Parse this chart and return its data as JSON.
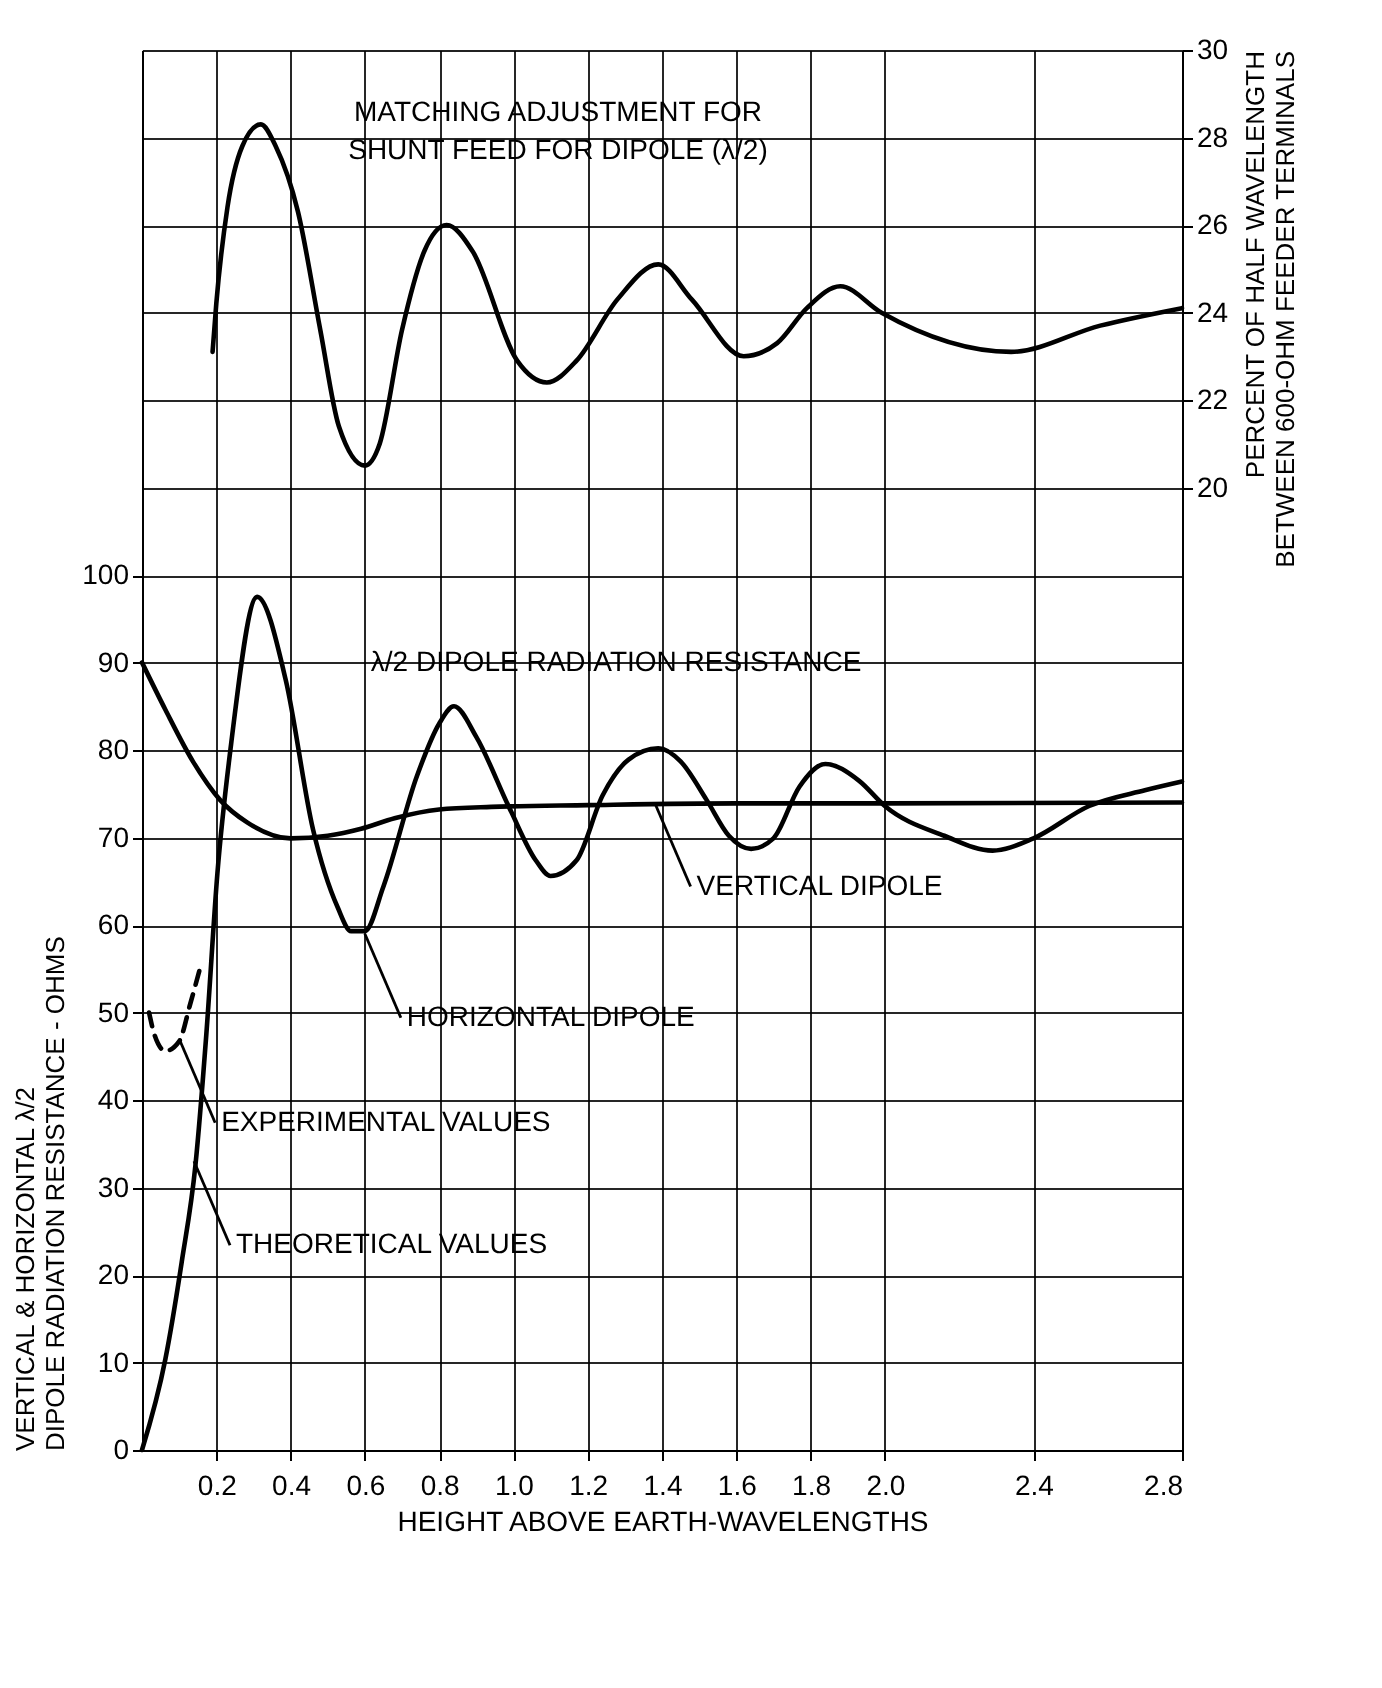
{
  "chart_data": {
    "type": "line",
    "xlabel": "HEIGHT ABOVE EARTH-WAVELENGTHS",
    "ylabel": "VERTICAL & HORIZONTAL λ/2\nDIPOLE RADIATION RESISTANCE - OHMS",
    "y2label": "PERCENT OF HALF WAVELENGTH\nBETWEEN 600-OHM FEEDER TERMINALS",
    "xlim": [
      0,
      2.8
    ],
    "xticks": [
      0.2,
      0.4,
      0.6,
      0.8,
      {
        "value": 1.0,
        "label": "1.0"
      },
      1.2,
      1.4,
      1.6,
      1.8,
      {
        "value": 2.0,
        "label": "2.0"
      },
      2.4,
      2.8
    ],
    "ylim": [
      0,
      160
    ],
    "yticks": [
      0,
      10,
      20,
      30,
      40,
      50,
      60,
      70,
      80,
      90,
      100
    ],
    "y2lim": [
      -2,
      30
    ],
    "y2ticks": [
      20,
      22,
      24,
      26,
      28,
      30
    ],
    "grid": true,
    "series": [
      {
        "color": "#000000",
        "axis": "y2",
        "x": [
          0.19,
          0.2,
          0.23,
          0.27,
          0.32,
          0.36,
          0.42,
          0.48,
          0.53,
          0.6,
          0.64,
          0.7,
          0.76,
          0.82,
          0.89,
          1.01,
          1.09,
          1.17,
          1.28,
          1.39,
          1.48,
          1.62,
          1.71,
          1.79,
          1.88,
          1.99,
          2.34,
          2.58,
          2.8
        ],
        "values": [
          23.1,
          24.2,
          26.4,
          27.8,
          28.3,
          27.8,
          26.3,
          23.6,
          21.4,
          20.5,
          21.0,
          23.6,
          25.4,
          26.0,
          25.4,
          22.9,
          22.4,
          22.9,
          24.3,
          25.1,
          24.3,
          23.0,
          23.3,
          24.1,
          24.6,
          24.0,
          23.1,
          23.7,
          24.1
        ]
      },
      {
        "color": "#000000",
        "x": [
          0,
          0.063,
          0.107,
          0.144,
          0.173,
          0.203,
          0.24,
          0.31,
          0.387,
          0.46,
          0.527,
          0.563,
          0.6,
          0.65,
          0.74,
          0.8,
          0.84,
          0.9,
          0.99,
          1.06,
          1.1,
          1.17,
          1.24,
          1.31,
          1.39,
          1.45,
          1.52,
          1.58,
          1.64,
          1.7,
          1.77,
          1.84,
          1.93,
          2.0,
          2.16,
          2.29,
          2.4,
          2.55,
          2.7,
          2.8
        ],
        "values": [
          0,
          10.4,
          21.5,
          32.6,
          47.4,
          65.9,
          80.7,
          97.5,
          88,
          71,
          62,
          59.3,
          59.3,
          64.4,
          77,
          83,
          85,
          81.5,
          73.3,
          67.4,
          65.6,
          67.4,
          74.8,
          78.9,
          80.2,
          78.7,
          74.3,
          70.2,
          68.7,
          69.9,
          75.8,
          78.4,
          76.5,
          73.6,
          70.2,
          68.5,
          69.9,
          73.6,
          75.4,
          76.4
        ]
      },
      {
        "color": "#000000",
        "x": [
          0,
          0.063,
          0.137,
          0.21,
          0.284,
          0.4,
          0.5,
          0.59,
          0.68,
          0.8,
          0.94,
          1.2,
          1.6,
          2.0,
          2.8
        ],
        "values": [
          90,
          84.6,
          78.7,
          74.3,
          71.7,
          69.9,
          70.2,
          71,
          72.2,
          73.2,
          73.5,
          73.7,
          73.9,
          73.9,
          74
        ]
      },
      {
        "color": "#000000",
        "line_style": "dashed",
        "x": [
          0.019,
          0.034,
          0.063,
          0.1,
          0.13,
          0.159
        ],
        "values": [
          50,
          47.4,
          45.6,
          46.7,
          51,
          55.5
        ]
      }
    ],
    "annotations": [
      "MATCHING ADJUSTMENT FOR\nSHUNT FEED FOR DIPOLE (λ/2)",
      "λ/2 DIPOLE RADIATION RESISTANCE",
      {
        "text": "VERTICAL DIPOLE",
        "x": 1.38,
        "y": 74
      },
      {
        "text": "HORIZONTAL DIPOLE",
        "x": 0.6,
        "y": 59
      },
      {
        "text": "EXPERIMENTAL VALUES",
        "x": 0.1,
        "y": 47
      },
      {
        "text": "THEORETICAL VALUES",
        "x": 0.14,
        "y": 33
      }
    ]
  }
}
